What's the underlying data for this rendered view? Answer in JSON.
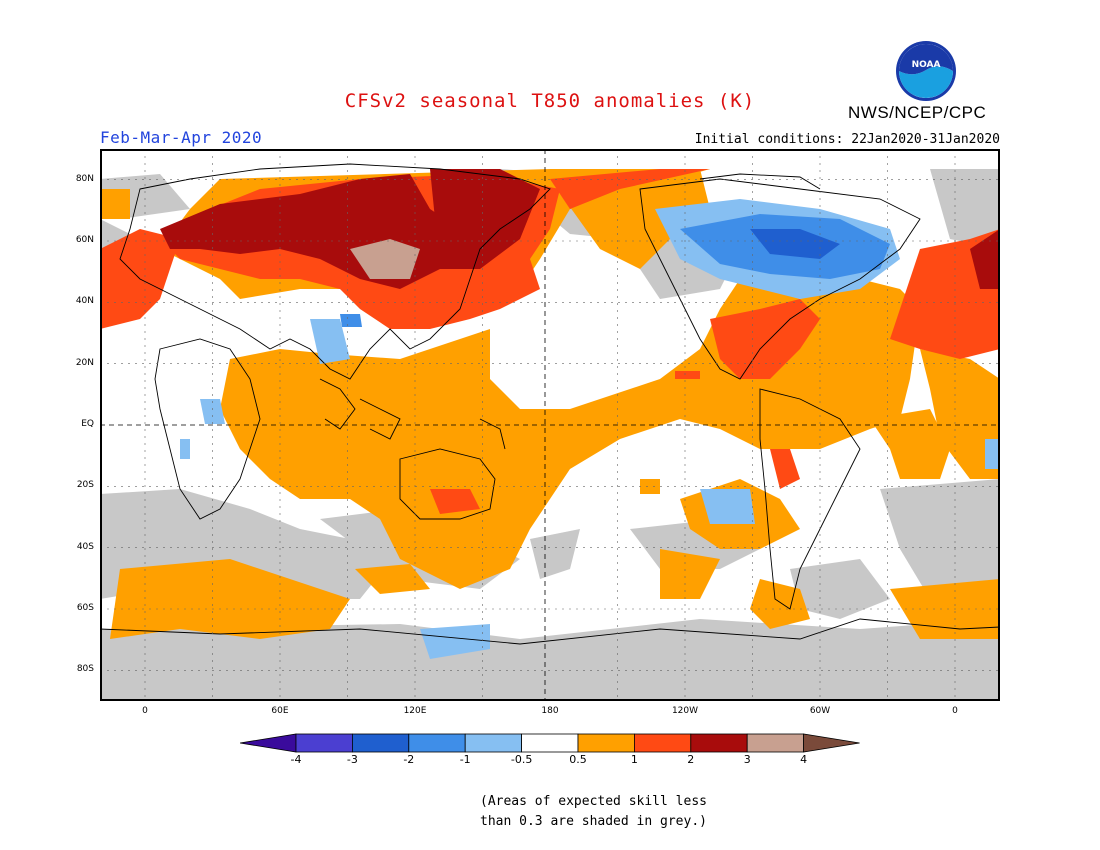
{
  "title": "CFSv2 seasonal T850 anomalies (K)",
  "organization": "NWS/NCEP/CPC",
  "logo_text": "NOAA",
  "period": "Feb-Mar-Apr 2020",
  "initial_conditions": "Initial conditions: 22Jan2020-31Jan2020",
  "footnote_line1": "(Areas of expected skill less",
  "footnote_line2": "than 0.3 are shaded in grey.)",
  "map": {
    "lat_labels": [
      "80N",
      "60N",
      "40N",
      "20N",
      "EQ",
      "20S",
      "40S",
      "60S",
      "80S"
    ],
    "lat_values": [
      80,
      60,
      40,
      20,
      0,
      -20,
      -40,
      -60,
      -80
    ],
    "lon_labels": [
      "0",
      "60E",
      "120E",
      "180",
      "120W",
      "60W",
      "0"
    ],
    "lon_values": [
      0,
      60,
      120,
      180,
      240,
      300,
      360
    ],
    "lon_range": [
      -20,
      380
    ],
    "lat_range": [
      -90,
      90
    ]
  },
  "colorbar": {
    "labels": [
      "-4",
      "-3",
      "-2",
      "-1",
      "-0.5",
      "0.5",
      "1",
      "2",
      "3",
      "4"
    ],
    "colors": [
      "#3a0b9c",
      "#4b3fd1",
      "#1f5fcf",
      "#3f8ee8",
      "#86bff2",
      "#ffffff",
      "#ffa000",
      "#ff4a14",
      "#a80c0c",
      "#c8a090",
      "#7a4a3a"
    ]
  },
  "palette": {
    "neutral": "#ffffff",
    "low_skill": "#c8c8c8",
    "pos_05_1": "#ffa000",
    "pos_1_2": "#ff4a14",
    "pos_2_3": "#a80c0c",
    "pos_3_4": "#c8a090",
    "neg_05_1": "#86bff2",
    "neg_1_2": "#3f8ee8",
    "neg_2_3": "#1f5fcf"
  }
}
